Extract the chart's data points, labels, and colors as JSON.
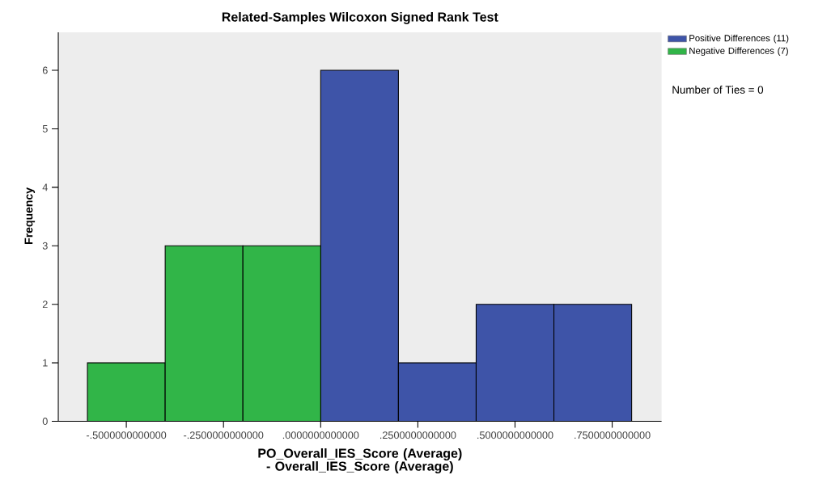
{
  "chart_data": {
    "type": "histogram",
    "title": "Related-Samples Wilcoxon Signed Rank Test",
    "xlabel": "PO_Overall_IES_Score (Average) - Overall_IES_Score (Average)",
    "ylabel": "Frequency",
    "bins": [
      -0.6,
      -0.4,
      -0.2,
      0,
      0.2,
      0.4,
      0.6,
      0.8
    ],
    "series": [
      {
        "name": "Positive Differences (11)",
        "color": "#3e54a8",
        "values": [
          null,
          null,
          null,
          6,
          1,
          2,
          2
        ]
      },
      {
        "name": "Negative Differences (7)",
        "color": "#31b548",
        "values": [
          1,
          3,
          3,
          null,
          null,
          null,
          null
        ]
      }
    ],
    "xlim": [
      -0.675,
      0.877
    ],
    "ylim": [
      0,
      6.65
    ],
    "xticks": [
      {
        "value": -0.5,
        "label": "-.5000000000000"
      },
      {
        "value": -0.25,
        "label": "-.2500000000000"
      },
      {
        "value": 0,
        "label": ".0000000000000"
      },
      {
        "value": 0.25,
        "label": ".2500000000000"
      },
      {
        "value": 0.5,
        "label": ".5000000000000"
      },
      {
        "value": 0.75,
        "label": ".7500000000000"
      }
    ],
    "yticks": [
      0,
      1,
      2,
      3,
      4,
      5,
      6
    ],
    "annotations": [
      "Number of Ties = 0"
    ],
    "legend": "top right",
    "grid": false
  }
}
